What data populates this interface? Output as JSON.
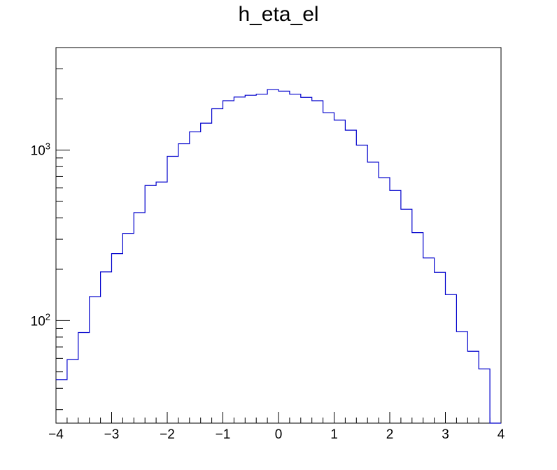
{
  "chart_data": {
    "type": "histogram",
    "title": "h_eta_el",
    "xlabel": "",
    "ylabel": "",
    "xlim": [
      -4,
      4
    ],
    "ylim": [
      25,
      4000
    ],
    "y_scale": "log",
    "grid": false,
    "legend": "none",
    "line_color": "#0000cc",
    "bin_width": 0.2,
    "bin_edges_start": -4,
    "x_ticks": [
      {
        "value": -4,
        "label": "−4"
      },
      {
        "value": -3,
        "label": "−3"
      },
      {
        "value": -2,
        "label": "−2"
      },
      {
        "value": -1,
        "label": "−1"
      },
      {
        "value": 0,
        "label": "0"
      },
      {
        "value": 1,
        "label": "1"
      },
      {
        "value": 2,
        "label": "2"
      },
      {
        "value": 3,
        "label": "3"
      },
      {
        "value": 4,
        "label": "4"
      }
    ],
    "y_ticks": [
      {
        "value": 100,
        "base": "10",
        "exp": "2"
      },
      {
        "value": 1000,
        "base": "10",
        "exp": "3"
      }
    ],
    "values": [
      45,
      59,
      85,
      138,
      193,
      247,
      325,
      430,
      620,
      650,
      920,
      1090,
      1280,
      1440,
      1750,
      1950,
      2050,
      2100,
      2130,
      2270,
      2220,
      2130,
      2040,
      1950,
      1660,
      1500,
      1310,
      1070,
      850,
      690,
      580,
      450,
      328,
      233,
      192,
      142,
      86,
      66,
      52,
      25
    ]
  }
}
